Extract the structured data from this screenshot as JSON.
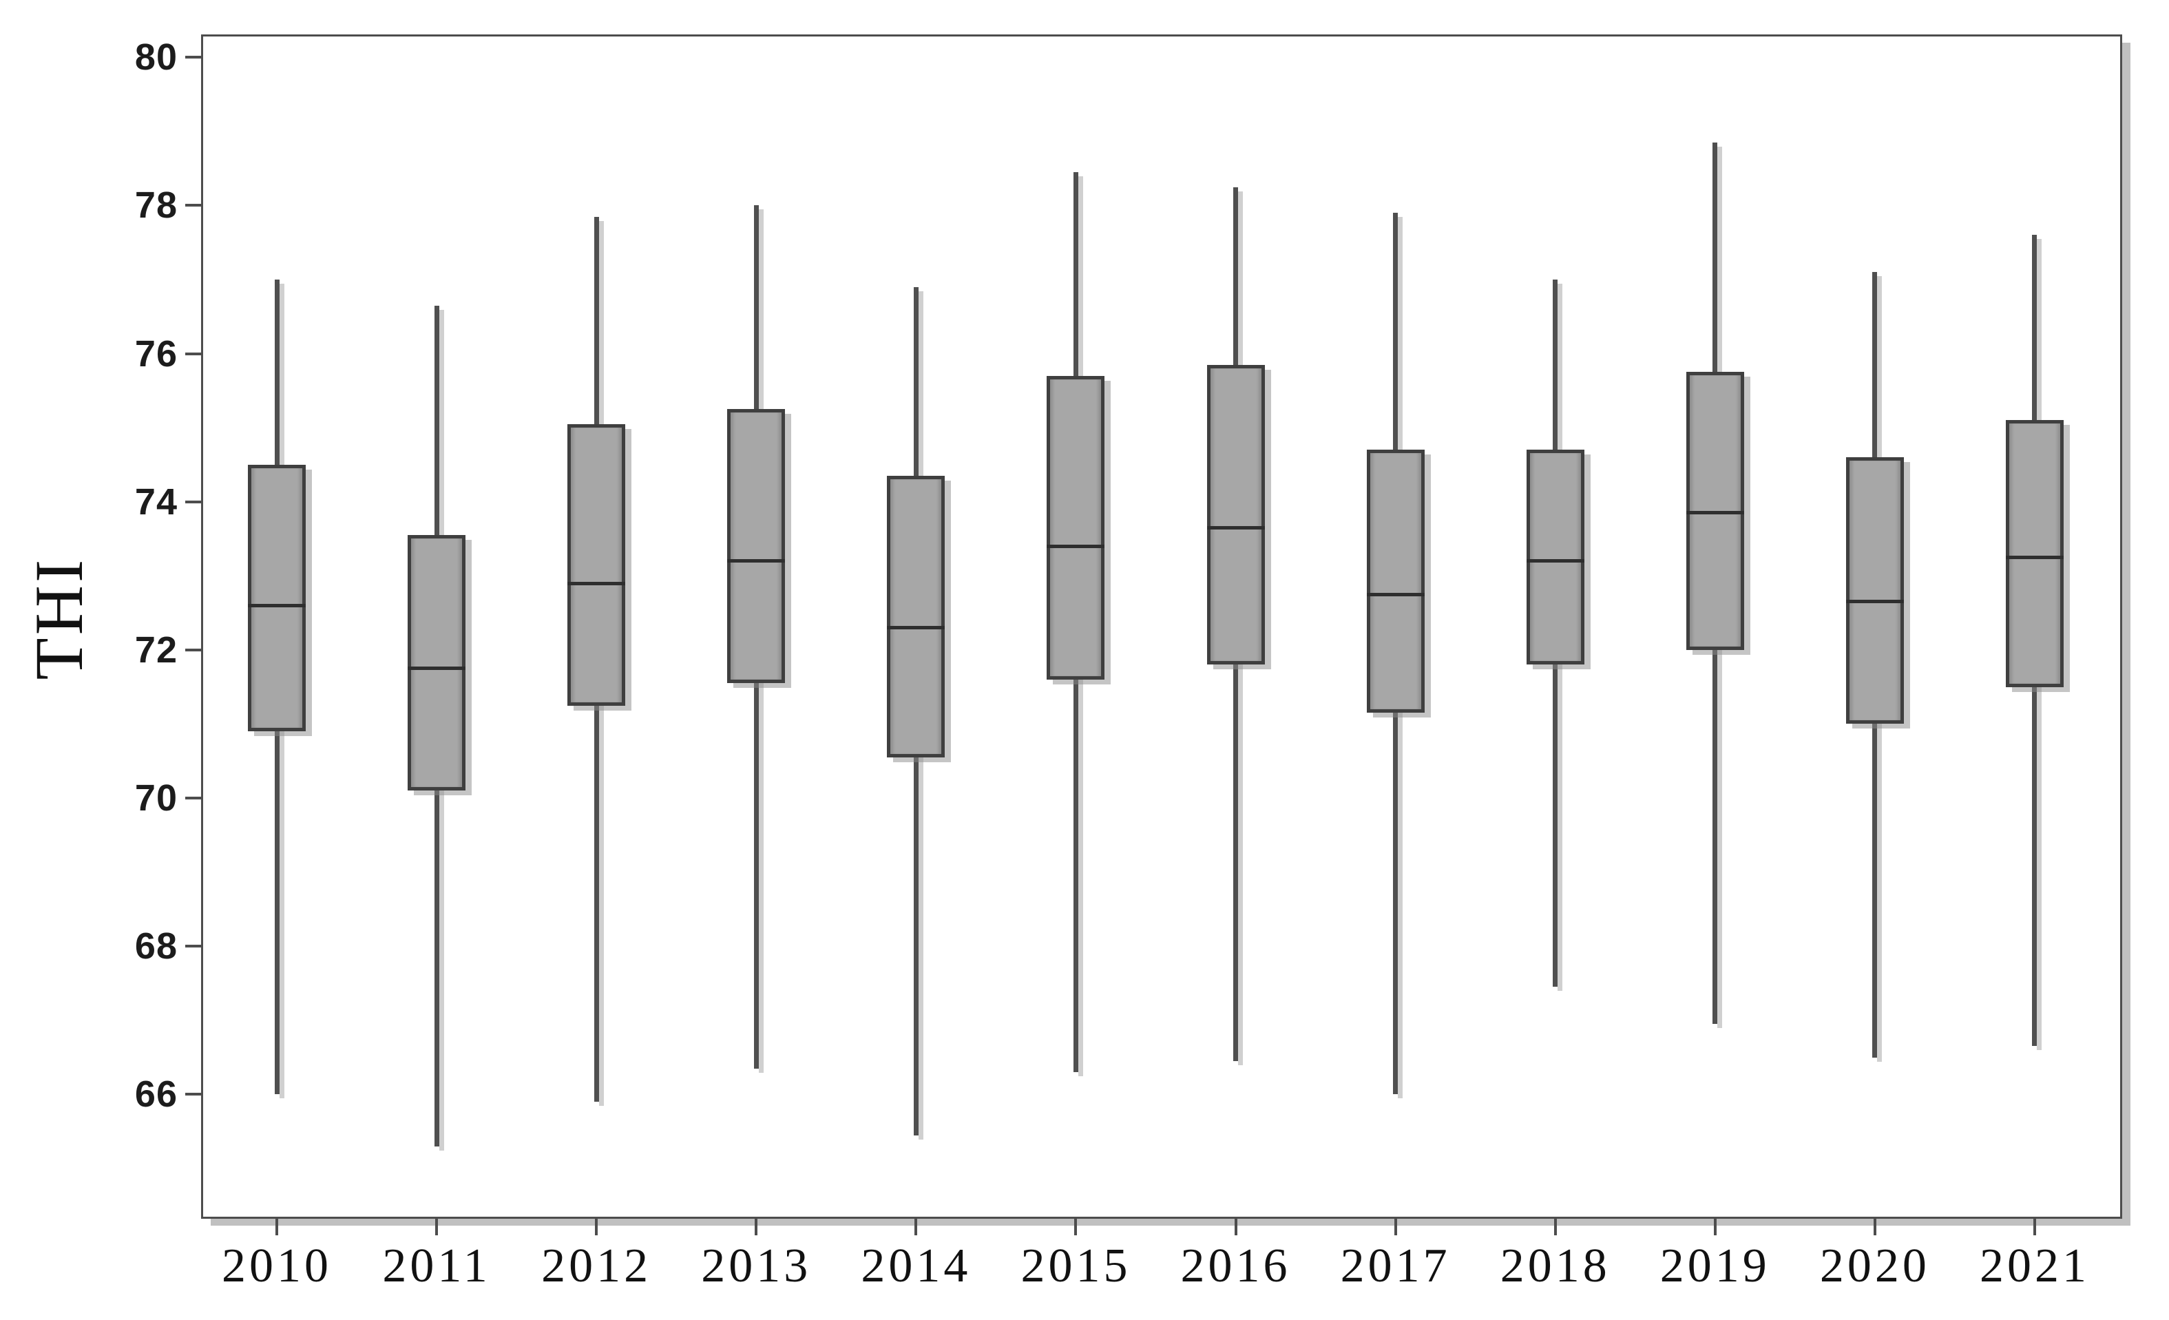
{
  "chart_data": {
    "type": "boxplot",
    "title": "",
    "xlabel": "",
    "ylabel": "THI",
    "grid": false,
    "legend": "none",
    "ylim": [
      64.34,
      80.3
    ],
    "y_tick_labels": [
      "66",
      "68",
      "70",
      "72",
      "74",
      "76",
      "78",
      "80"
    ],
    "categories": [
      "2010",
      "2011",
      "2012",
      "2013",
      "2014",
      "2015",
      "2016",
      "2017",
      "2018",
      "2019",
      "2020",
      "2021"
    ],
    "series": [
      {
        "year": "2010",
        "whisker_low": 66.0,
        "q1": 70.9,
        "median": 72.6,
        "q3": 74.5,
        "whisker_high": 77.0
      },
      {
        "year": "2011",
        "whisker_low": 65.3,
        "q1": 70.1,
        "median": 71.75,
        "q3": 73.55,
        "whisker_high": 76.65
      },
      {
        "year": "2012",
        "whisker_low": 65.9,
        "q1": 71.25,
        "median": 72.9,
        "q3": 75.05,
        "whisker_high": 77.85
      },
      {
        "year": "2013",
        "whisker_low": 66.35,
        "q1": 71.55,
        "median": 73.2,
        "q3": 75.25,
        "whisker_high": 78.0
      },
      {
        "year": "2014",
        "whisker_low": 65.45,
        "q1": 70.55,
        "median": 72.3,
        "q3": 74.35,
        "whisker_high": 76.9
      },
      {
        "year": "2015",
        "whisker_low": 66.3,
        "q1": 71.6,
        "median": 73.4,
        "q3": 75.7,
        "whisker_high": 78.45
      },
      {
        "year": "2016",
        "whisker_low": 66.45,
        "q1": 71.8,
        "median": 73.65,
        "q3": 75.85,
        "whisker_high": 78.25
      },
      {
        "year": "2017",
        "whisker_low": 66.0,
        "q1": 71.15,
        "median": 72.75,
        "q3": 74.7,
        "whisker_high": 77.9
      },
      {
        "year": "2018",
        "whisker_low": 67.45,
        "q1": 71.8,
        "median": 73.2,
        "q3": 74.7,
        "whisker_high": 77.0
      },
      {
        "year": "2019",
        "whisker_low": 66.95,
        "q1": 72.0,
        "median": 73.85,
        "q3": 75.75,
        "whisker_high": 78.85
      },
      {
        "year": "2020",
        "whisker_low": 66.5,
        "q1": 71.0,
        "median": 72.65,
        "q3": 74.6,
        "whisker_high": 77.1
      },
      {
        "year": "2021",
        "whisker_low": 66.65,
        "q1": 71.5,
        "median": 73.25,
        "q3": 75.1,
        "whisker_high": 77.6
      }
    ]
  },
  "colors": {
    "box_fill": "#a7a7a7",
    "box_border": "#3f3f3f",
    "whisker": "#4f4f4f",
    "median": "#2e2e2e",
    "frame": "#4d4d4d",
    "shadow": "#c0c0c0",
    "text": "#111111"
  }
}
